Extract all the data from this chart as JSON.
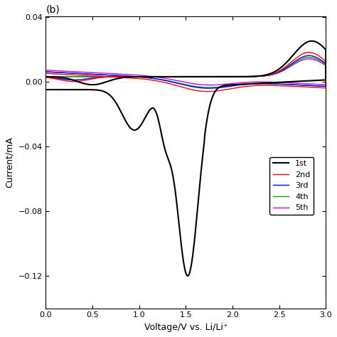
{
  "title": "(b)",
  "xlabel": "Voltage/V vs. Li/Li⁺",
  "ylabel": "Current/mA",
  "xlim": [
    0.0,
    3.0
  ],
  "ylim": [
    -0.14,
    0.04
  ],
  "yticks": [
    0.04,
    0.0,
    -0.04,
    -0.08,
    -0.12
  ],
  "xticks": [
    0.0,
    0.5,
    1.0,
    1.5,
    2.0,
    2.5,
    3.0
  ],
  "colors": {
    "1st": "#000000",
    "2nd": "#FF0000",
    "3rd": "#0000FF",
    "4th": "#00AA00",
    "5th": "#CC00CC"
  },
  "background": "#FFFFFF"
}
